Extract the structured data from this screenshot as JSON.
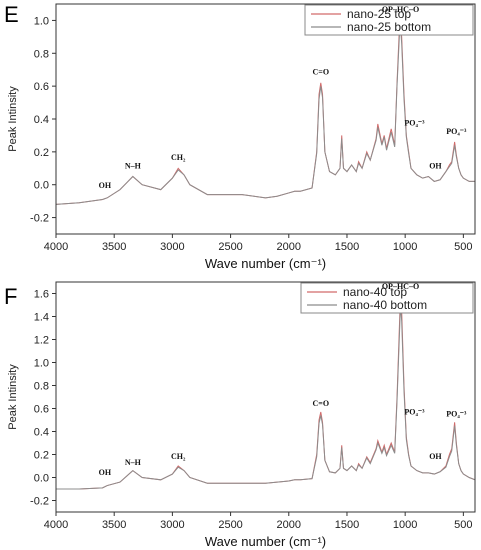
{
  "chart_data": [
    {
      "panel": "E",
      "type": "line",
      "xlabel": "Wave number (cm⁻¹)",
      "ylabel": "Peak Intinsity",
      "xlim": [
        4000,
        400
      ],
      "ylim": [
        -0.3,
        1.1
      ],
      "xticks": [
        4000,
        3500,
        3000,
        2500,
        2000,
        1500,
        1000,
        500
      ],
      "yticks": [
        -0.2,
        0.0,
        0.2,
        0.4,
        0.6,
        0.8,
        1.0
      ],
      "ytick_labels": [
        "-0.2",
        "0.0",
        "0.2",
        "0.4",
        "0.6",
        "0.8",
        "1.0"
      ],
      "legend_position": "top-right",
      "series": [
        {
          "name": "nano-25 top",
          "color": "#d26a6a",
          "x": [
            4000,
            3800,
            3600,
            3560,
            3450,
            3340,
            3260,
            3100,
            3000,
            2950,
            2900,
            2850,
            2700,
            2400,
            2200,
            2100,
            2000,
            1950,
            1900,
            1800,
            1760,
            1740,
            1725,
            1710,
            1690,
            1650,
            1600,
            1560,
            1545,
            1530,
            1500,
            1460,
            1420,
            1400,
            1370,
            1330,
            1300,
            1250,
            1235,
            1200,
            1180,
            1160,
            1120,
            1090,
            1070,
            1050,
            1040,
            1030,
            1010,
            990,
            970,
            950,
            900,
            850,
            800,
            750,
            700,
            650,
            620,
            600,
            575,
            560,
            540,
            520,
            500,
            450,
            400
          ],
          "y": [
            -0.12,
            -0.11,
            -0.09,
            -0.08,
            -0.03,
            0.05,
            0.0,
            -0.03,
            0.04,
            0.1,
            0.06,
            0.0,
            -0.06,
            -0.06,
            -0.08,
            -0.07,
            -0.05,
            -0.04,
            -0.04,
            -0.02,
            0.2,
            0.55,
            0.62,
            0.55,
            0.2,
            0.08,
            0.06,
            0.1,
            0.3,
            0.1,
            0.08,
            0.12,
            0.08,
            0.14,
            0.1,
            0.2,
            0.15,
            0.28,
            0.37,
            0.25,
            0.3,
            0.22,
            0.34,
            0.24,
            0.62,
            0.95,
            1.0,
            0.9,
            0.55,
            0.3,
            0.2,
            0.1,
            0.06,
            0.04,
            0.05,
            0.02,
            0.03,
            0.08,
            0.12,
            0.14,
            0.26,
            0.18,
            0.1,
            0.06,
            0.04,
            0.02,
            0.02
          ]
        },
        {
          "name": "nano-25 bottom",
          "color": "#8c8c8c",
          "x": [
            4000,
            3800,
            3600,
            3560,
            3450,
            3340,
            3260,
            3100,
            3000,
            2950,
            2900,
            2850,
            2700,
            2400,
            2200,
            2100,
            2000,
            1950,
            1900,
            1800,
            1760,
            1740,
            1725,
            1710,
            1690,
            1650,
            1600,
            1560,
            1545,
            1530,
            1500,
            1460,
            1420,
            1400,
            1370,
            1330,
            1300,
            1250,
            1235,
            1200,
            1180,
            1160,
            1120,
            1090,
            1070,
            1050,
            1040,
            1030,
            1010,
            990,
            970,
            950,
            900,
            850,
            800,
            750,
            700,
            650,
            620,
            600,
            575,
            560,
            540,
            520,
            500,
            450,
            400
          ],
          "y": [
            -0.12,
            -0.11,
            -0.09,
            -0.08,
            -0.03,
            0.05,
            0.0,
            -0.03,
            0.04,
            0.09,
            0.06,
            0.0,
            -0.06,
            -0.06,
            -0.08,
            -0.07,
            -0.05,
            -0.04,
            -0.04,
            -0.02,
            0.19,
            0.52,
            0.6,
            0.53,
            0.2,
            0.08,
            0.06,
            0.1,
            0.28,
            0.1,
            0.08,
            0.12,
            0.08,
            0.13,
            0.1,
            0.19,
            0.15,
            0.27,
            0.35,
            0.24,
            0.29,
            0.21,
            0.32,
            0.23,
            0.6,
            0.9,
            0.96,
            0.86,
            0.52,
            0.29,
            0.19,
            0.1,
            0.06,
            0.04,
            0.05,
            0.02,
            0.03,
            0.08,
            0.11,
            0.13,
            0.24,
            0.17,
            0.1,
            0.06,
            0.04,
            0.02,
            0.02
          ]
        }
      ],
      "annotations": [
        {
          "label": "OH",
          "x": 3580,
          "y": -0.02
        },
        {
          "label": "N–H",
          "x": 3340,
          "y": 0.1
        },
        {
          "label": "CH₂",
          "x": 2950,
          "y": 0.15
        },
        {
          "label": "C=O",
          "x": 1725,
          "y": 0.67
        },
        {
          "label": "OP–HC–O",
          "x": 1040,
          "y": 1.05
        },
        {
          "label": "PO₄⁻³",
          "x": 920,
          "y": 0.36
        },
        {
          "label": "OH",
          "x": 740,
          "y": 0.1
        },
        {
          "label": "PO₄⁻³",
          "x": 560,
          "y": 0.31
        }
      ]
    },
    {
      "panel": "F",
      "type": "line",
      "xlabel": "Wave number (cm⁻¹)",
      "ylabel": "Peak Intinsity",
      "xlim": [
        4000,
        400
      ],
      "ylim": [
        -0.3,
        1.7
      ],
      "xticks": [
        4000,
        3500,
        3000,
        2500,
        2000,
        1500,
        1000,
        500
      ],
      "yticks": [
        -0.2,
        0.0,
        0.2,
        0.4,
        0.6,
        0.8,
        1.0,
        1.2,
        1.4,
        1.6
      ],
      "ytick_labels": [
        "-0.2",
        "0.0",
        "0.2",
        "0.4",
        "0.6",
        "0.8",
        "1.0",
        "1.2",
        "1.4",
        "1.6"
      ],
      "legend_position": "top-right",
      "series": [
        {
          "name": "nano-40 top",
          "color": "#d26a6a",
          "x": [
            4000,
            3800,
            3600,
            3560,
            3450,
            3340,
            3260,
            3100,
            3000,
            2950,
            2900,
            2850,
            2700,
            2400,
            2200,
            2100,
            2000,
            1950,
            1900,
            1800,
            1760,
            1740,
            1725,
            1710,
            1690,
            1650,
            1600,
            1560,
            1545,
            1530,
            1500,
            1460,
            1420,
            1400,
            1370,
            1330,
            1300,
            1250,
            1235,
            1200,
            1180,
            1160,
            1120,
            1090,
            1070,
            1050,
            1040,
            1030,
            1010,
            990,
            970,
            950,
            900,
            850,
            800,
            750,
            700,
            650,
            620,
            600,
            575,
            560,
            540,
            520,
            500,
            450,
            400
          ],
          "y": [
            -0.1,
            -0.1,
            -0.09,
            -0.07,
            -0.04,
            0.06,
            0.0,
            -0.02,
            0.03,
            0.1,
            0.06,
            0.0,
            -0.05,
            -0.05,
            -0.05,
            -0.04,
            -0.03,
            -0.02,
            -0.02,
            -0.01,
            0.2,
            0.5,
            0.57,
            0.48,
            0.15,
            0.05,
            0.04,
            0.08,
            0.28,
            0.08,
            0.06,
            0.1,
            0.06,
            0.12,
            0.08,
            0.18,
            0.13,
            0.25,
            0.32,
            0.22,
            0.28,
            0.2,
            0.3,
            0.22,
            0.7,
            1.3,
            1.6,
            1.45,
            0.8,
            0.35,
            0.2,
            0.1,
            0.06,
            0.04,
            0.04,
            0.03,
            0.05,
            0.1,
            0.2,
            0.25,
            0.48,
            0.3,
            0.12,
            0.06,
            0.03,
            0.0,
            -0.02
          ]
        },
        {
          "name": "nano-40 bottom",
          "color": "#8c8c8c",
          "x": [
            4000,
            3800,
            3600,
            3560,
            3450,
            3340,
            3260,
            3100,
            3000,
            2950,
            2900,
            2850,
            2700,
            2400,
            2200,
            2100,
            2000,
            1950,
            1900,
            1800,
            1760,
            1740,
            1725,
            1710,
            1690,
            1650,
            1600,
            1560,
            1545,
            1530,
            1500,
            1460,
            1420,
            1400,
            1370,
            1330,
            1300,
            1250,
            1235,
            1200,
            1180,
            1160,
            1120,
            1090,
            1070,
            1050,
            1040,
            1030,
            1010,
            990,
            970,
            950,
            900,
            850,
            800,
            750,
            700,
            650,
            620,
            600,
            575,
            560,
            540,
            520,
            500,
            450,
            400
          ],
          "y": [
            -0.1,
            -0.1,
            -0.09,
            -0.07,
            -0.04,
            0.06,
            0.0,
            -0.02,
            0.03,
            0.09,
            0.06,
            0.0,
            -0.05,
            -0.05,
            -0.05,
            -0.04,
            -0.03,
            -0.02,
            -0.02,
            -0.01,
            0.18,
            0.47,
            0.54,
            0.46,
            0.15,
            0.05,
            0.04,
            0.08,
            0.26,
            0.08,
            0.06,
            0.1,
            0.06,
            0.11,
            0.08,
            0.17,
            0.12,
            0.24,
            0.3,
            0.21,
            0.26,
            0.19,
            0.28,
            0.21,
            0.66,
            1.22,
            1.5,
            1.36,
            0.75,
            0.33,
            0.19,
            0.1,
            0.06,
            0.04,
            0.04,
            0.03,
            0.05,
            0.09,
            0.18,
            0.23,
            0.45,
            0.28,
            0.12,
            0.06,
            0.03,
            0.0,
            -0.02
          ]
        }
      ],
      "annotations": [
        {
          "label": "OH",
          "x": 3580,
          "y": 0.02
        },
        {
          "label": "N–H",
          "x": 3340,
          "y": 0.11
        },
        {
          "label": "CH₂",
          "x": 2950,
          "y": 0.16
        },
        {
          "label": "C=O",
          "x": 1725,
          "y": 0.62
        },
        {
          "label": "OP–HC–O",
          "x": 1040,
          "y": 1.64
        },
        {
          "label": "PO₄⁻³",
          "x": 920,
          "y": 0.55
        },
        {
          "label": "OH",
          "x": 740,
          "y": 0.16
        },
        {
          "label": "PO₄⁻³",
          "x": 560,
          "y": 0.53
        }
      ]
    }
  ]
}
